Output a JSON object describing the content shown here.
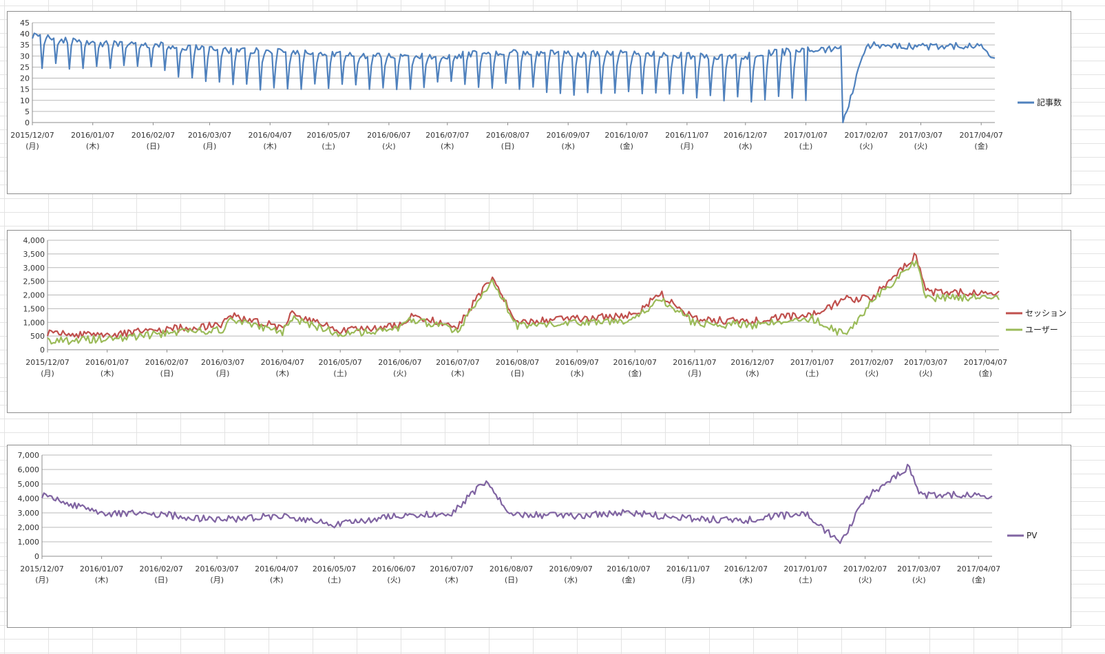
{
  "x_axis_dates": [
    "2015/12/07",
    "2016/01/07",
    "2016/02/07",
    "2016/03/07",
    "2016/04/07",
    "2016/05/07",
    "2016/06/07",
    "2016/07/07",
    "2016/08/07",
    "2016/09/07",
    "2016/10/07",
    "2016/11/07",
    "2016/12/07",
    "2017/01/07",
    "2017/02/07",
    "2017/03/07",
    "2017/04/07"
  ],
  "x_axis_weekdays": [
    "(月)",
    "(木)",
    "(日)",
    "(月)",
    "(木)",
    "(土)",
    "(火)",
    "(木)",
    "(日)",
    "(水)",
    "(金)",
    "(月)",
    "(水)",
    "(土)",
    "(火)",
    "(火)",
    "(金)"
  ],
  "chart_data": [
    {
      "type": "line",
      "x_range": [
        "2015/12/07",
        "2017/04/14"
      ],
      "ylim": [
        0,
        45
      ],
      "y_ticks": [
        0,
        5,
        10,
        15,
        20,
        25,
        30,
        35,
        40,
        45
      ],
      "y_tick_labels": [
        "0",
        "5",
        "10",
        "15",
        "20",
        "25",
        "30",
        "35",
        "40",
        "45"
      ],
      "grid": true,
      "legend_position": "right",
      "series": [
        {
          "name": "記事数",
          "color": "#4f81bd",
          "x": [
            "2015/12/07",
            "2016/01/07",
            "2016/02/07",
            "2016/03/07",
            "2016/04/07",
            "2016/05/07",
            "2016/06/07",
            "2016/07/07",
            "2016/08/07",
            "2016/09/07",
            "2016/10/07",
            "2016/11/07",
            "2016/12/07",
            "2017/01/07",
            "2017/01/25",
            "2017/01/26",
            "2017/02/07",
            "2017/03/07",
            "2017/04/07",
            "2017/04/14"
          ],
          "values": [
            39,
            36,
            35,
            33,
            32,
            31,
            30,
            30,
            32,
            31,
            31,
            30,
            30,
            33,
            33,
            0,
            35,
            34,
            35,
            28
          ],
          "weekly_low": [
            24,
            24,
            23,
            17,
            13,
            15,
            14,
            16,
            15,
            12,
            12,
            10,
            9,
            null,
            null,
            null,
            null,
            null,
            null,
            null
          ]
        }
      ]
    },
    {
      "type": "line",
      "x_range": [
        "2015/12/07",
        "2017/04/14"
      ],
      "ylim": [
        0,
        4000
      ],
      "y_ticks": [
        0,
        500,
        1000,
        1500,
        2000,
        2500,
        3000,
        3500,
        4000
      ],
      "y_tick_labels": [
        "0",
        "500",
        "1,000",
        "1,500",
        "2,000",
        "2,500",
        "3,000",
        "3,500",
        "4,000"
      ],
      "grid": true,
      "legend_position": "right",
      "series": [
        {
          "name": "セッション",
          "color": "#c0504d",
          "x": [
            "2015/12/07",
            "2016/01/07",
            "2016/02/07",
            "2016/03/07",
            "2016/03/10",
            "2016/04/07",
            "2016/04/12",
            "2016/05/07",
            "2016/06/07",
            "2016/06/13",
            "2016/07/07",
            "2016/07/25",
            "2016/08/07",
            "2016/09/07",
            "2016/10/07",
            "2016/10/20",
            "2016/11/07",
            "2016/12/07",
            "2017/01/07",
            "2017/01/25",
            "2017/02/07",
            "2017/03/02",
            "2017/03/07",
            "2017/04/07",
            "2017/04/14"
          ],
          "values": [
            600,
            550,
            750,
            900,
            1250,
            820,
            1300,
            700,
            900,
            1250,
            880,
            2650,
            1000,
            1150,
            1250,
            2050,
            1100,
            1050,
            1300,
            1850,
            1900,
            3450,
            2100,
            2100,
            2050
          ]
        },
        {
          "name": "ユーザー",
          "color": "#9bbb59",
          "x": [
            "2015/12/07",
            "2016/01/07",
            "2016/02/07",
            "2016/03/07",
            "2016/03/10",
            "2016/04/07",
            "2016/04/12",
            "2016/05/07",
            "2016/06/07",
            "2016/06/13",
            "2016/07/07",
            "2016/07/25",
            "2016/08/07",
            "2016/09/07",
            "2016/10/07",
            "2016/10/20",
            "2016/11/07",
            "2016/12/07",
            "2017/01/07",
            "2017/01/25",
            "2017/02/07",
            "2017/03/02",
            "2017/03/07",
            "2017/04/07",
            "2017/04/14"
          ],
          "values": [
            300,
            400,
            600,
            750,
            1100,
            650,
            1150,
            560,
            760,
            1100,
            720,
            2550,
            850,
            1000,
            1100,
            1900,
            950,
            900,
            1150,
            500,
            1750,
            3250,
            1900,
            1900,
            1900
          ]
        }
      ]
    },
    {
      "type": "line",
      "x_range": [
        "2015/12/07",
        "2017/04/14"
      ],
      "ylim": [
        0,
        7000
      ],
      "y_ticks": [
        0,
        1000,
        2000,
        3000,
        4000,
        5000,
        6000,
        7000
      ],
      "y_tick_labels": [
        "0",
        "1,000",
        "2,000",
        "3,000",
        "4,000",
        "5,000",
        "6,000",
        "7,000"
      ],
      "grid": true,
      "legend_position": "right",
      "series": [
        {
          "name": "PV",
          "color": "#8064a2",
          "x": [
            "2015/12/07",
            "2016/01/07",
            "2016/02/07",
            "2016/03/07",
            "2016/04/07",
            "2016/05/07",
            "2016/06/07",
            "2016/07/07",
            "2016/07/25",
            "2016/08/07",
            "2016/09/07",
            "2016/10/07",
            "2016/11/07",
            "2016/12/07",
            "2017/01/07",
            "2017/01/25",
            "2017/02/07",
            "2017/03/02",
            "2017/03/07",
            "2017/04/07",
            "2017/04/14"
          ],
          "values": [
            4200,
            3000,
            2900,
            2500,
            2800,
            2200,
            2800,
            3000,
            5200,
            2900,
            2800,
            3000,
            2600,
            2500,
            3000,
            900,
            4000,
            6200,
            4200,
            4300,
            4000
          ]
        }
      ]
    }
  ]
}
